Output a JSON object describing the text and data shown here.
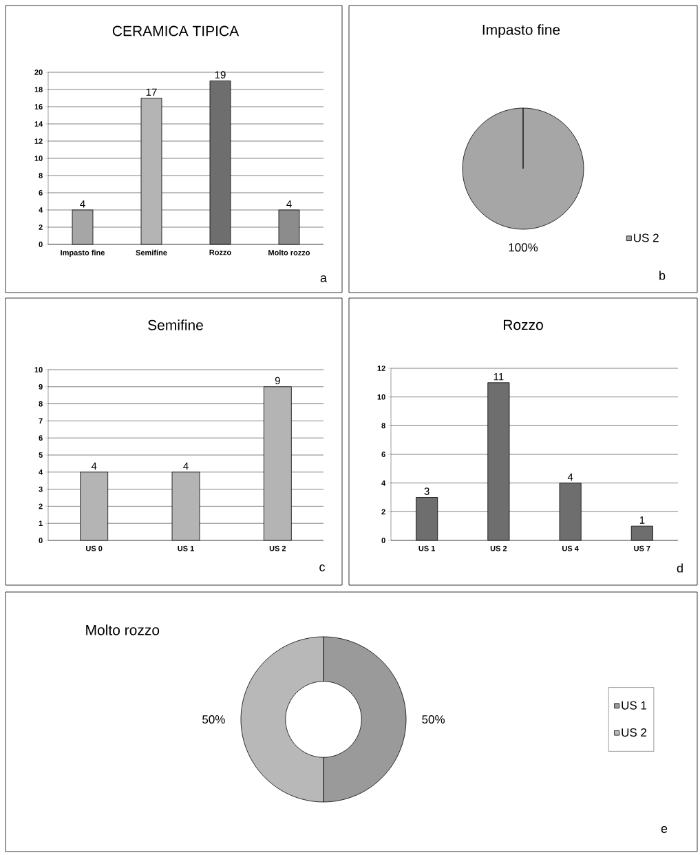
{
  "chart_data": [
    {
      "type": "bar",
      "title": "CERAMICA TIPICA",
      "categories": [
        "Impasto fine",
        "Semifine",
        "Rozzo",
        "Molto rozzo"
      ],
      "values": [
        4,
        17,
        19,
        4
      ],
      "colors": [
        "#a6a6a6",
        "#b4b4b4",
        "#6e6e6e",
        "#8c8c8c"
      ],
      "ylim": [
        0,
        20
      ],
      "yticks": [
        0,
        2,
        4,
        6,
        8,
        10,
        12,
        14,
        16,
        18,
        20
      ],
      "grid": "y",
      "data_labels": true,
      "annotations": [
        "a"
      ]
    },
    {
      "type": "pie",
      "title": "Impasto fine",
      "categories": [
        "US 2"
      ],
      "values": [
        100
      ],
      "colors": [
        "#a6a6a6"
      ],
      "value_labels": [
        "100%"
      ],
      "legend": "bottom right",
      "annotations": [
        "b"
      ]
    },
    {
      "type": "bar",
      "title": "Semifine",
      "categories": [
        "US 0",
        "US 1",
        "US 2"
      ],
      "values": [
        4,
        4,
        9
      ],
      "colors": [
        "#b4b4b4",
        "#b4b4b4",
        "#b4b4b4"
      ],
      "ylim": [
        0,
        10
      ],
      "yticks": [
        0,
        1,
        2,
        3,
        4,
        5,
        6,
        7,
        8,
        9,
        10
      ],
      "grid": "y",
      "data_labels": true,
      "annotations": [
        "c"
      ]
    },
    {
      "type": "bar",
      "title": "Rozzo",
      "categories": [
        "US 1",
        "US 2",
        "US 4",
        "US 7"
      ],
      "values": [
        3,
        11,
        4,
        1
      ],
      "colors": [
        "#6e6e6e",
        "#6e6e6e",
        "#6e6e6e",
        "#6e6e6e"
      ],
      "ylim": [
        0,
        12
      ],
      "yticks": [
        0,
        2,
        4,
        6,
        8,
        10,
        12
      ],
      "grid": "y",
      "data_labels": true,
      "annotations": [
        "d"
      ]
    },
    {
      "type": "donut",
      "title": "Molto rozzo",
      "categories": [
        "US 1",
        "US 2"
      ],
      "values": [
        50,
        50
      ],
      "colors": [
        "#9a9a9a",
        "#b8b8b8"
      ],
      "value_labels": [
        "50%",
        "50%"
      ],
      "legend": "right",
      "annotations": [
        "e"
      ]
    }
  ]
}
